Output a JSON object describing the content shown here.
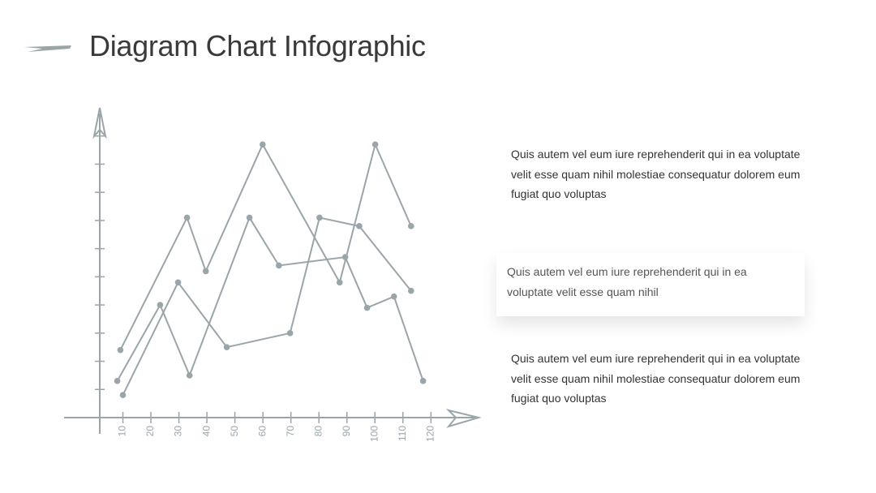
{
  "title": "Diagram Chart Infographic",
  "chart_data": {
    "type": "line",
    "xlim": [
      -11,
      137
    ],
    "ylim": [
      0,
      11
    ],
    "xticks": [
      10,
      20,
      30,
      40,
      50,
      60,
      70,
      80,
      90,
      100,
      110,
      120
    ],
    "yticks": [
      1,
      2,
      3,
      4,
      5,
      6,
      7,
      8,
      9,
      10
    ],
    "series": [
      {
        "color": "#9aa5aa",
        "x": [
          9.1,
          32.9,
          39.6,
          59.9,
          87.4,
          100.1,
          112.9
        ],
        "values": [
          2.4,
          7.1,
          5.2,
          9.7,
          4.8,
          9.7,
          6.8
        ]
      },
      {
        "color": "#9aa5aa",
        "x": [
          8,
          23.3,
          33.8,
          55.2,
          65.7,
          89.4,
          97.2,
          106.8,
          117.2
        ],
        "values": [
          1.3,
          4.0,
          1.5,
          7.1,
          5.4,
          5.7,
          3.9,
          4.3,
          1.3
        ]
      },
      {
        "color": "#9aa5aa",
        "x": [
          10,
          29.7,
          47.1,
          69.7,
          80.2,
          94.4,
          112.9
        ],
        "values": [
          0.8,
          4.8,
          2.5,
          3.0,
          7.1,
          6.8,
          4.5
        ]
      }
    ]
  },
  "paragraphs": [
    "Quis autem vel eum iure reprehenderit qui in ea voluptate velit esse quam nihil molestiae consequatur dolorem eum fugiat quo voluptas",
    "Quis autem vel eum iure reprehenderit qui in ea voluptate velit esse quam nihil",
    "Quis autem vel eum iure reprehenderit qui in ea voluptate velit esse quam nihil molestiae consequatur dolorem eum fugiat quo voluptas"
  ]
}
